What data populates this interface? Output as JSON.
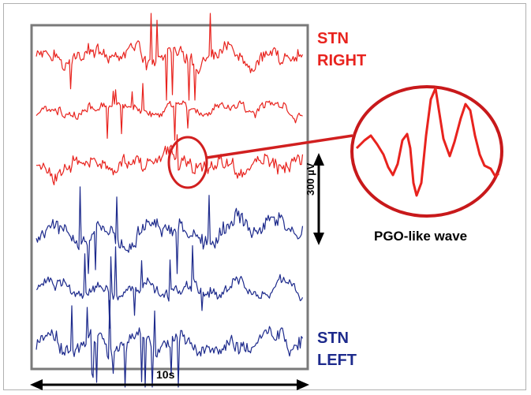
{
  "labels": {
    "stn_right_line1": "STN",
    "stn_right_line2": "RIGHT",
    "stn_left_line1": "STN",
    "stn_left_line2": "LEFT",
    "voltage_scale": "300 µV",
    "time_scale": "10s",
    "inset_caption": "PGO-like wave"
  },
  "colors": {
    "right_traces": "#e8231e",
    "left_traces": "#1d2a8c",
    "highlight": "#d11f1f",
    "panel_border": "#7a7a7a"
  },
  "traces": [
    {
      "side": "right",
      "seed": 11
    },
    {
      "side": "right",
      "seed": 23
    },
    {
      "side": "right",
      "seed": 37
    },
    {
      "side": "left",
      "seed": 41
    },
    {
      "side": "left",
      "seed": 53
    },
    {
      "side": "left",
      "seed": 67
    }
  ]
}
